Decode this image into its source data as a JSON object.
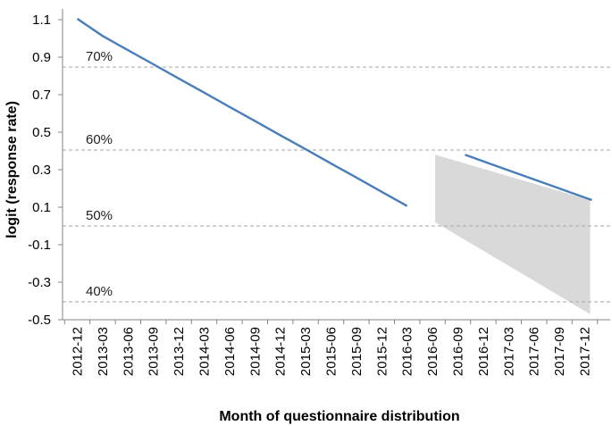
{
  "chart_data": {
    "type": "line",
    "xlabel": "Month of questionnaire distribution",
    "ylabel": "logit (response rate)",
    "ylim": [
      -0.5,
      1.2
    ],
    "yticks": [
      1.1,
      0.9,
      0.7,
      0.5,
      0.3,
      0.1,
      -0.1,
      -0.3,
      -0.5
    ],
    "ytick_labels": [
      "1.1",
      "0.9",
      "0.7",
      "0.5",
      "0.3",
      "0.1",
      "-0.1",
      "-0.3",
      "-0.5"
    ],
    "categories": [
      "2012-12",
      "2013-03",
      "2013-06",
      "2013-09",
      "2013-12",
      "2014-03",
      "2014-06",
      "2014-09",
      "2014-12",
      "2015-03",
      "2015-06",
      "2015-09",
      "2015-12",
      "2016-03",
      "2016-06",
      "2016-09",
      "2016-12",
      "2017-03",
      "2017-06",
      "2017-09",
      "2017-12"
    ],
    "grid": false,
    "series": [
      {
        "values": [
          1.105,
          1.013,
          0.937,
          0.862,
          0.786,
          0.711,
          0.635,
          0.56,
          0.484,
          0.409,
          0.333,
          0.258,
          0.182,
          0.106,
          null,
          null,
          null,
          null,
          null,
          null,
          null
        ],
        "color": "#4a7ebb"
      },
      {
        "values": [
          null,
          null,
          null,
          null,
          null,
          null,
          null,
          null,
          null,
          null,
          null,
          null,
          null,
          null,
          null,
          0.38,
          0.331,
          0.283,
          0.235,
          0.186,
          0.138
        ],
        "color": "#4a7ebb"
      }
    ],
    "bands": [
      {
        "x_start": "2016-06",
        "x_end": "2017-12",
        "upper_start": 0.38,
        "upper_end": 0.138,
        "lower_start": 0.02,
        "lower_end": -0.47,
        "color": "#d9d9d9"
      }
    ],
    "reference_lines": [
      {
        "y": 0.847,
        "label": "70%"
      },
      {
        "y": 0.405,
        "label": "60%"
      },
      {
        "y": 0.0,
        "label": "50%"
      },
      {
        "y": -0.405,
        "label": "40%"
      }
    ]
  }
}
